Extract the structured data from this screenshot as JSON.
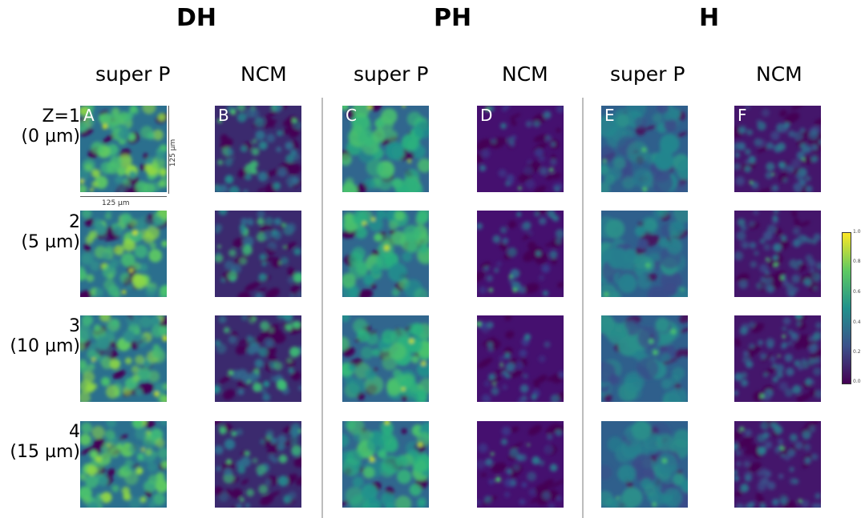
{
  "figure": {
    "groups": [
      {
        "id": "dh",
        "title": "DH"
      },
      {
        "id": "ph",
        "title": "PH"
      },
      {
        "id": "h",
        "title": "H"
      }
    ],
    "columns": [
      {
        "label": "super P",
        "panel": "A",
        "group": "DH"
      },
      {
        "label": "NCM",
        "panel": "B",
        "group": "DH"
      },
      {
        "label": "super P",
        "panel": "C",
        "group": "PH"
      },
      {
        "label": "NCM",
        "panel": "D",
        "group": "PH"
      },
      {
        "label": "super P",
        "panel": "E",
        "group": "H"
      },
      {
        "label": "NCM",
        "panel": "F",
        "group": "H"
      }
    ],
    "rows": [
      {
        "z": "Z=1",
        "depth": "(0 µm)"
      },
      {
        "z": "2",
        "depth": "(5 µm)"
      },
      {
        "z": "3",
        "depth": "(10 µm)"
      },
      {
        "z": "4",
        "depth": "(15 µm)"
      }
    ],
    "scale_bar": {
      "horizontal": "125 µm",
      "vertical": "125 µm"
    },
    "colorbar": {
      "ticks": [
        "1.0",
        "0.8",
        "0.6",
        "0.4",
        "0.2",
        "0.0"
      ],
      "colors": [
        "#440154",
        "#3b528b",
        "#21918c",
        "#5ec962",
        "#fde725"
      ]
    }
  }
}
